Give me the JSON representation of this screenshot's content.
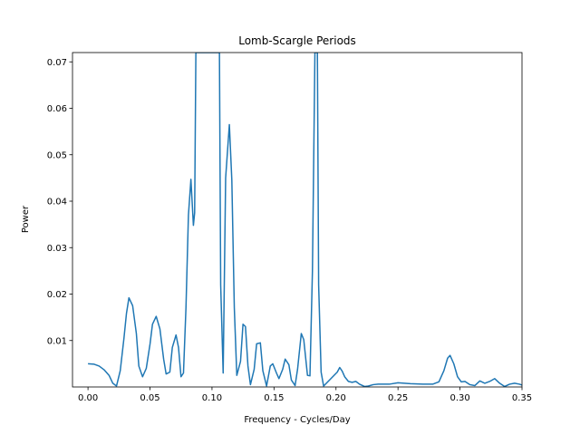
{
  "chart_data": {
    "type": "line",
    "title": "Lomb-Scargle Periods",
    "xlabel": "Frequency - Cycles/Day",
    "ylabel": "Power",
    "xlim": [
      -0.0125,
      0.35
    ],
    "ylim": [
      0.0,
      0.072
    ],
    "xticks": [
      0.0,
      0.05,
      0.1,
      0.15,
      0.2,
      0.25,
      0.3,
      0.35
    ],
    "xtick_labels": [
      "0.00",
      "0.05",
      "0.10",
      "0.15",
      "0.20",
      "0.25",
      "0.30",
      "0.35"
    ],
    "yticks": [
      0.01,
      0.02,
      0.03,
      0.04,
      0.05,
      0.06,
      0.07
    ],
    "ytick_labels": [
      "0.01",
      "0.02",
      "0.03",
      "0.04",
      "0.05",
      "0.06",
      "0.07"
    ],
    "grid": false,
    "color": "#1f77b4",
    "series": [
      {
        "x": [
          0.0,
          0.005,
          0.009,
          0.013,
          0.017,
          0.02,
          0.023,
          0.026,
          0.029,
          0.031,
          0.033,
          0.036,
          0.039,
          0.041,
          0.044,
          0.047,
          0.05,
          0.052,
          0.055,
          0.058,
          0.061,
          0.063,
          0.066,
          0.068,
          0.071,
          0.073,
          0.075,
          0.077,
          0.079,
          0.081,
          0.083,
          0.085,
          0.086,
          0.087,
          0.106,
          0.107,
          0.109,
          0.111,
          0.114,
          0.116,
          0.118,
          0.12,
          0.123,
          0.125,
          0.127,
          0.129,
          0.131,
          0.134,
          0.136,
          0.139,
          0.141,
          0.144,
          0.147,
          0.149,
          0.152,
          0.154,
          0.157,
          0.159,
          0.162,
          0.164,
          0.167,
          0.169,
          0.172,
          0.174,
          0.177,
          0.179,
          0.181,
          0.183,
          0.185,
          0.186,
          0.188,
          0.19,
          0.201,
          0.203,
          0.205,
          0.207,
          0.21,
          0.213,
          0.216,
          0.219,
          0.223,
          0.226,
          0.23,
          0.234,
          0.238,
          0.243,
          0.25,
          0.26,
          0.27,
          0.278,
          0.283,
          0.287,
          0.29,
          0.292,
          0.295,
          0.298,
          0.301,
          0.304,
          0.308,
          0.312,
          0.316,
          0.32,
          0.324,
          0.328,
          0.332,
          0.336,
          0.34,
          0.344,
          0.348,
          0.35
        ],
        "y": [
          0.005,
          0.0049,
          0.0045,
          0.0037,
          0.0025,
          0.0008,
          0.0002,
          0.0035,
          0.0105,
          0.0158,
          0.0192,
          0.0175,
          0.0115,
          0.0045,
          0.0022,
          0.004,
          0.0092,
          0.0135,
          0.0152,
          0.0125,
          0.006,
          0.0028,
          0.0032,
          0.0085,
          0.0112,
          0.0085,
          0.0022,
          0.003,
          0.017,
          0.037,
          0.0447,
          0.0348,
          0.0375,
          0.072,
          0.072,
          0.022,
          0.003,
          0.045,
          0.0565,
          0.0445,
          0.017,
          0.0025,
          0.0055,
          0.0135,
          0.013,
          0.0045,
          0.0005,
          0.0038,
          0.0093,
          0.0095,
          0.0035,
          0.0002,
          0.0045,
          0.005,
          0.003,
          0.0018,
          0.0038,
          0.006,
          0.0048,
          0.0015,
          0.0003,
          0.0038,
          0.0115,
          0.0102,
          0.0025,
          0.0024,
          0.025,
          0.072,
          0.072,
          0.022,
          0.0032,
          0.0002,
          0.0032,
          0.0042,
          0.0034,
          0.0022,
          0.0012,
          0.001,
          0.0012,
          0.0006,
          0.0001,
          0.0002,
          0.0005,
          0.0006,
          0.0006,
          0.0006,
          0.0009,
          0.0007,
          0.0006,
          0.0006,
          0.0011,
          0.0035,
          0.0062,
          0.0068,
          0.005,
          0.0022,
          0.0011,
          0.0012,
          0.0005,
          0.0003,
          0.0013,
          0.0008,
          0.0012,
          0.0018,
          0.0008,
          0.0001,
          0.0006,
          0.0008,
          0.0006,
          0.0004
        ]
      }
    ]
  }
}
